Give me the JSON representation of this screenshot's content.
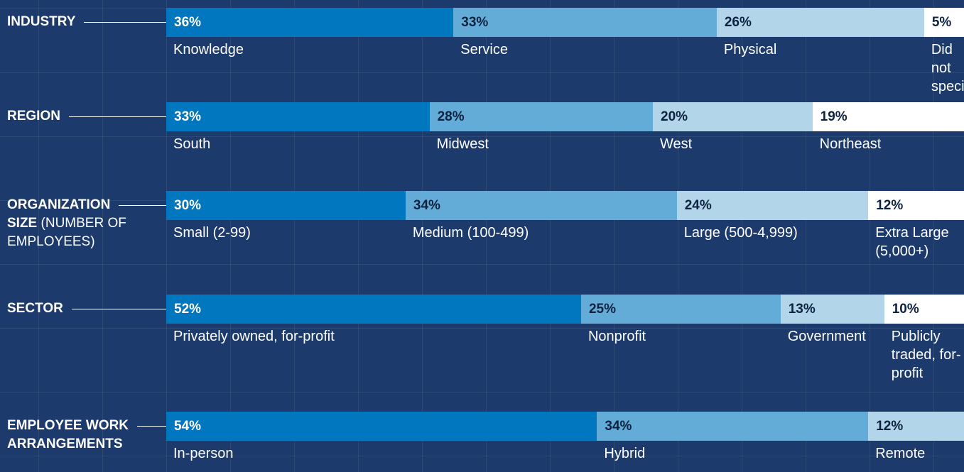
{
  "chart_data": [
    {
      "type": "stacked_bar",
      "title": "INDUSTRY",
      "categories": [
        "Knowledge",
        "Service",
        "Physical",
        "Did not specify"
      ],
      "values": [
        36,
        33,
        26,
        5
      ],
      "value_labels": [
        "36%",
        "33%",
        "26%",
        "5%"
      ],
      "colors": [
        "#0077be",
        "#63acd8",
        "#b3d5ea",
        "#ffffff"
      ],
      "xlim": [
        0,
        100
      ]
    },
    {
      "type": "stacked_bar",
      "title": "REGION",
      "categories": [
        "South",
        "Midwest",
        "West",
        "Northeast"
      ],
      "values": [
        33,
        28,
        20,
        19
      ],
      "value_labels": [
        "33%",
        "28%",
        "20%",
        "19%"
      ],
      "colors": [
        "#0077be",
        "#63acd8",
        "#b3d5ea",
        "#ffffff"
      ],
      "xlim": [
        0,
        100
      ]
    },
    {
      "type": "stacked_bar",
      "title": "ORGANIZATION SIZE",
      "title_note": "(NUMBER OF EMPLOYEES)",
      "categories": [
        "Small (2-99)",
        "Medium (100-499)",
        "Large (500-4,999)",
        "Extra Large (5,000+)"
      ],
      "values": [
        30,
        34,
        24,
        12
      ],
      "value_labels": [
        "30%",
        "34%",
        "24%",
        "12%"
      ],
      "colors": [
        "#0077be",
        "#63acd8",
        "#b3d5ea",
        "#ffffff"
      ],
      "xlim": [
        0,
        100
      ]
    },
    {
      "type": "stacked_bar",
      "title": "SECTOR",
      "categories": [
        "Privately owned, for-profit",
        "Nonprofit",
        "Government",
        "Publicly traded, for-profit"
      ],
      "values": [
        52,
        25,
        13,
        10
      ],
      "value_labels": [
        "52%",
        "25%",
        "13%",
        "10%"
      ],
      "colors": [
        "#0077be",
        "#63acd8",
        "#b3d5ea",
        "#ffffff"
      ],
      "xlim": [
        0,
        100
      ]
    },
    {
      "type": "stacked_bar",
      "title": "EMPLOYEE WORK ARRANGEMENTS",
      "categories": [
        "In-person",
        "Hybrid",
        "Remote"
      ],
      "values": [
        54,
        34,
        12
      ],
      "value_labels": [
        "54%",
        "34%",
        "12%"
      ],
      "colors": [
        "#0077be",
        "#63acd8",
        "#b3d5ea"
      ],
      "xlim": [
        0,
        100
      ]
    }
  ]
}
